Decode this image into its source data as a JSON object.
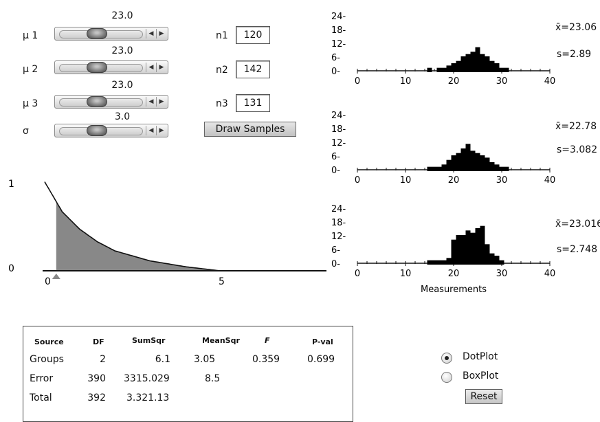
{
  "controls": {
    "sliders": [
      {
        "label": "μ 1",
        "value": "23.0"
      },
      {
        "label": "μ 2",
        "value": "23.0"
      },
      {
        "label": "μ 3",
        "value": "23.0"
      },
      {
        "label": "σ",
        "value": "3.0"
      }
    ],
    "samples": [
      {
        "label": "n1",
        "value": "120"
      },
      {
        "label": "n2",
        "value": "142"
      },
      {
        "label": "n3",
        "value": "131"
      }
    ],
    "draw_label": "Draw Samples"
  },
  "density_plot": {
    "y_ticks": [
      "1",
      "0"
    ],
    "x_ticks": [
      "0",
      "5"
    ]
  },
  "dotplots": [
    {
      "mean": "x̄=23.06",
      "sd": "s=2.89"
    },
    {
      "mean": "x̄=22.78",
      "sd": "s=3.082"
    },
    {
      "mean": "x̄=23.016",
      "sd": "s=2.748"
    }
  ],
  "axis": {
    "y_ticks": [
      "24-",
      "18-",
      "12-",
      "6-",
      "0-"
    ],
    "x_ticks": [
      "0",
      "10",
      "20",
      "30",
      "40"
    ],
    "xlabel": "Measurements"
  },
  "anova": {
    "headers": [
      "Source",
      "DF",
      "SumSqr",
      "MeanSqr",
      "F",
      "P-val"
    ],
    "rows": [
      [
        "Groups",
        "2",
        "6.1",
        "3.05",
        "0.359",
        "0.699"
      ],
      [
        "Error",
        "390",
        "3315.029",
        "8.5",
        "",
        ""
      ],
      [
        "Total",
        "392",
        "3.321.13",
        "",
        "",
        ""
      ]
    ]
  },
  "view": {
    "dotplot_label": "DotPlot",
    "boxplot_label": "BoxPlot",
    "selected": "DotPlot",
    "reset_label": "Reset"
  },
  "chart_data": [
    {
      "type": "line",
      "title": "",
      "x_ticks": [
        "0",
        "5"
      ],
      "y_ticks": [
        "1",
        "0"
      ],
      "series": [
        {
          "x": [
            0,
            0.5,
            1,
            1.5,
            2,
            3,
            4,
            5
          ],
          "y": [
            1.07,
            0.71,
            0.5,
            0.35,
            0.24,
            0.12,
            0.05,
            0.0
          ]
        }
      ],
      "shaded_from_x": 0.33
    },
    {
      "type": "bar",
      "xlabel": "",
      "xlim": [
        0,
        40
      ],
      "ylim": [
        0,
        24
      ],
      "x": [
        15,
        16,
        17,
        18,
        19,
        20,
        21,
        22,
        23,
        24,
        25,
        26,
        27,
        28,
        29,
        30,
        31
      ],
      "values": [
        1,
        0,
        1,
        1,
        2,
        3,
        4,
        6,
        7,
        8,
        10,
        7,
        6,
        4,
        3,
        1,
        1
      ]
    },
    {
      "type": "bar",
      "xlabel": "",
      "xlim": [
        0,
        40
      ],
      "ylim": [
        0,
        24
      ],
      "x": [
        15,
        16,
        17,
        18,
        19,
        20,
        21,
        22,
        23,
        24,
        25,
        26,
        27,
        28,
        29,
        30,
        31
      ],
      "values": [
        1,
        1,
        1,
        2,
        4,
        6,
        7,
        9,
        11,
        8,
        7,
        6,
        5,
        3,
        2,
        1,
        1
      ]
    },
    {
      "type": "bar",
      "xlabel": "Measurements",
      "xlim": [
        0,
        40
      ],
      "ylim": [
        0,
        24
      ],
      "x": [
        15,
        16,
        17,
        18,
        19,
        20,
        21,
        22,
        23,
        24,
        25,
        26,
        27,
        28,
        29,
        30,
        31
      ],
      "values": [
        1,
        1,
        1,
        1,
        2,
        10,
        12,
        12,
        14,
        13,
        15,
        16,
        8,
        4,
        3,
        1,
        0
      ]
    }
  ]
}
